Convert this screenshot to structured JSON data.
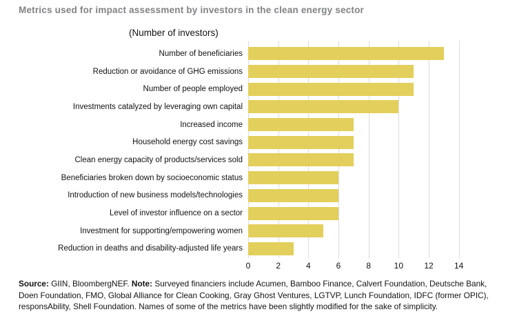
{
  "title": "Metrics used for impact assessment by investors in the clean energy sector",
  "subtitle": "(Number of investors)",
  "chart_data": {
    "type": "bar",
    "orientation": "horizontal",
    "title": "Metrics used for impact assessment by investors in the clean energy sector",
    "subtitle": "(Number of investors)",
    "categories": [
      "Number of beneficiaries",
      "Reduction or avoidance of GHG emissions",
      "Number of people employed",
      "Investments catalyzed by leveraging own capital",
      "Increased income",
      "Household energy cost savings",
      "Clean energy capacity of products/services sold",
      "Beneficiaries broken down by socioeconomic status",
      "Introduction of new business models/technologies",
      "Level of investor influence on a sector",
      "Investment for supporting/empowering women",
      "Reduction in deaths and disability-adjusted life years"
    ],
    "values": [
      13,
      11,
      11,
      10,
      7,
      7,
      7,
      6,
      6,
      6,
      5,
      3
    ],
    "xlabel": "",
    "ylabel": "",
    "xlim": [
      0,
      15.8
    ],
    "xticks": [
      0,
      2,
      4,
      6,
      8,
      10,
      12,
      14
    ],
    "grid": true,
    "legend": false,
    "bar_color": "#e3cf5b",
    "gridline_color": "#dcdcdc"
  },
  "footer": {
    "source_label": "Source:",
    "source_text": " GIIN, BloombergNEF. ",
    "note_label": "Note:",
    "note_text": " Surveyed financiers include Acumen, Bamboo Finance, Calvert Foundation, Deutsche Bank, Doen Foundation, FMO, Global Alliance for Clean Cooking, Gray Ghost Ventures, LGTVP, Lunch Foundation, IDFC (former OPIC), responsAbility, Shell Foundation. Names of some of the metrics have been slightly modified for the sake of simplicity."
  },
  "colors": {
    "title": "#808285",
    "bar": "#e3cf5b",
    "gridline": "#dcdcdc",
    "text": "#111111",
    "background": "#ffffff"
  }
}
